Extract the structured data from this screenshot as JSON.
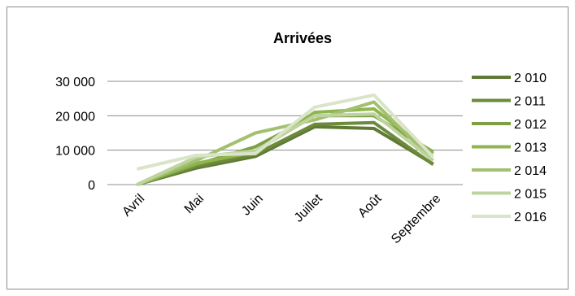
{
  "chart_data": {
    "type": "line",
    "title": "Arrivées",
    "xlabel": "",
    "ylabel": "",
    "categories": [
      "Avril",
      "Mai",
      "Juin",
      "Juillet",
      "Août",
      "Septembre"
    ],
    "y_ticks": [
      "0",
      "10 000",
      "20 000",
      "30 000"
    ],
    "ylim": [
      0,
      30000
    ],
    "grid": true,
    "legend_position": "right",
    "series": [
      {
        "name": "2 010",
        "color": "#5f7a35",
        "values": [
          0,
          4800,
          8200,
          16800,
          16300,
          6000
        ]
      },
      {
        "name": "2 011",
        "color": "#6c8a3a",
        "values": [
          0,
          5300,
          8800,
          17500,
          18000,
          5800
        ]
      },
      {
        "name": "2 012",
        "color": "#7ea045",
        "values": [
          0,
          5800,
          11000,
          20000,
          20000,
          9500
        ]
      },
      {
        "name": "2 013",
        "color": "#8fb64e",
        "values": [
          0,
          6200,
          9500,
          21000,
          22000,
          9000
        ]
      },
      {
        "name": "2 014",
        "color": "#a3c071",
        "values": [
          0,
          7000,
          15000,
          18800,
          24000,
          7000
        ]
      },
      {
        "name": "2 015",
        "color": "#bed49f",
        "values": [
          0,
          8000,
          9800,
          20000,
          20500,
          7000
        ]
      },
      {
        "name": "2 016",
        "color": "#d9e4c8",
        "values": [
          4500,
          8500,
          9000,
          22500,
          26000,
          8000
        ]
      }
    ]
  }
}
